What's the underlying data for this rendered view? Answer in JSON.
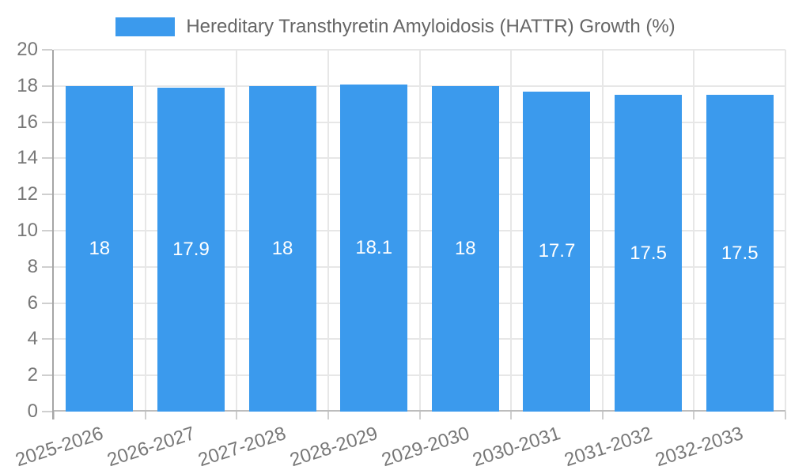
{
  "colors": {
    "bar": "#3B9AED",
    "axis_line": "#A6A6A6",
    "gridline": "#E7E7E7",
    "baseline": "#BDBDBD",
    "tick_text": "#777777",
    "legend_text": "#666666",
    "bar_label_text": "#FFFFFF",
    "background": "#FFFFFF"
  },
  "chart_data": {
    "type": "bar",
    "title": "Hereditary Transthyretin Amyloidosis (HATTR) Growth (%)",
    "categories": [
      "2025-2026",
      "2026-2027",
      "2027-2028",
      "2028-2029",
      "2029-2030",
      "2030-2031",
      "2031-2032",
      "2032-2033"
    ],
    "values": [
      18,
      17.9,
      18,
      18.1,
      18,
      17.7,
      17.5,
      17.5
    ],
    "bar_labels": [
      "18",
      "17.9",
      "18",
      "18.1",
      "18",
      "17.7",
      "17.5",
      "17.5"
    ],
    "xlabel": "",
    "ylabel": "",
    "ylim": [
      0,
      20
    ],
    "yticks": [
      0,
      2,
      4,
      6,
      8,
      10,
      12,
      14,
      16,
      18,
      20
    ],
    "grid": true,
    "legend_position": "top"
  }
}
